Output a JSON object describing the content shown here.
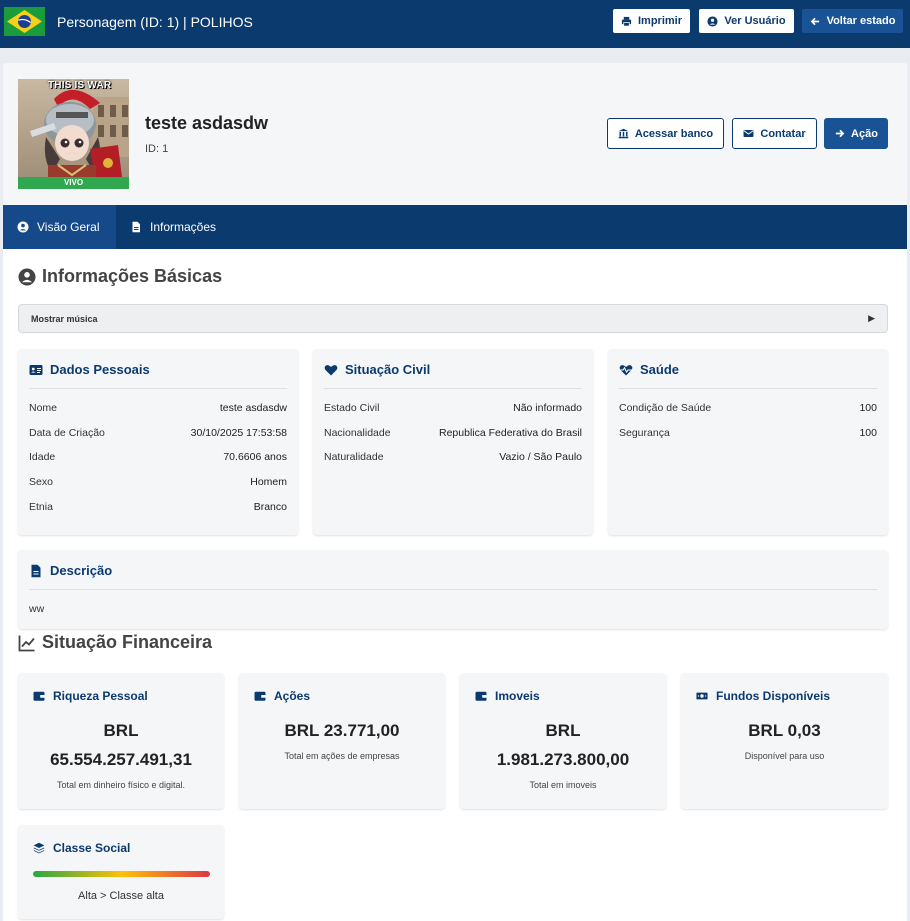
{
  "topbar": {
    "title": "Personagem (ID: 1) | POLIHOS",
    "buttons": {
      "print": "Imprimir",
      "view_user": "Ver Usuário",
      "back_state": "Voltar estado"
    },
    "colors": {
      "bg": "#0b3a6e",
      "accent": "#1a5296"
    }
  },
  "character": {
    "name": "teste asdasdw",
    "id_label": "ID: 1",
    "status": "VIVO",
    "image_caption": "THIS IS WAR",
    "actions": {
      "bank": "Acessar banco",
      "contact": "Contatar",
      "action": "Ação"
    }
  },
  "tabs": [
    {
      "label": "Visão Geral",
      "icon": "user-circle-icon",
      "active": true
    },
    {
      "label": "Informações",
      "icon": "file-icon",
      "active": false
    }
  ],
  "basic": {
    "title": "Informações Básicas",
    "music_toggle": "Mostrar música",
    "personal": {
      "title": "Dados Pessoais",
      "rows": [
        {
          "k": "Nome",
          "v": "teste asdasdw"
        },
        {
          "k": "Data de Criação",
          "v": "30/10/2025 17:53:58"
        },
        {
          "k": "Idade",
          "v": "70.6606 anos"
        },
        {
          "k": "Sexo",
          "v": "Homem"
        },
        {
          "k": "Etnia",
          "v": "Branco"
        }
      ]
    },
    "civil": {
      "title": "Situação Civil",
      "rows": [
        {
          "k": "Estado Civil",
          "v": "Não informado"
        },
        {
          "k": "Nacionalidade",
          "v": "Republica Federativa do Brasil"
        },
        {
          "k": "Naturalidade",
          "v": "Vazio / São Paulo"
        }
      ]
    },
    "health": {
      "title": "Saúde",
      "rows": [
        {
          "k": "Condição de Saúde",
          "v": "100"
        },
        {
          "k": "Segurança",
          "v": "100"
        }
      ]
    },
    "description": {
      "title": "Descrição",
      "text": "ww"
    }
  },
  "finance": {
    "title": "Situação Financeira",
    "cards": {
      "wealth": {
        "title": "Riqueza Pessoal",
        "line1": "BRL",
        "line2": "65.554.257.491,31",
        "sub": "Total em dinheiro físico e digital."
      },
      "stocks": {
        "title": "Ações",
        "line1": "BRL 23.771,00",
        "sub": "Total em ações de empresas"
      },
      "property": {
        "title": "Imoveis",
        "line1": "BRL",
        "line2": "1.981.273.800,00",
        "sub": "Total em imoveis"
      },
      "funds": {
        "title": "Fundos Disponíveis",
        "line1": "BRL 0,03",
        "sub": "Disponível para uso"
      }
    },
    "social_class": {
      "title": "Classe Social",
      "text": "Alta > Classe alta"
    }
  }
}
